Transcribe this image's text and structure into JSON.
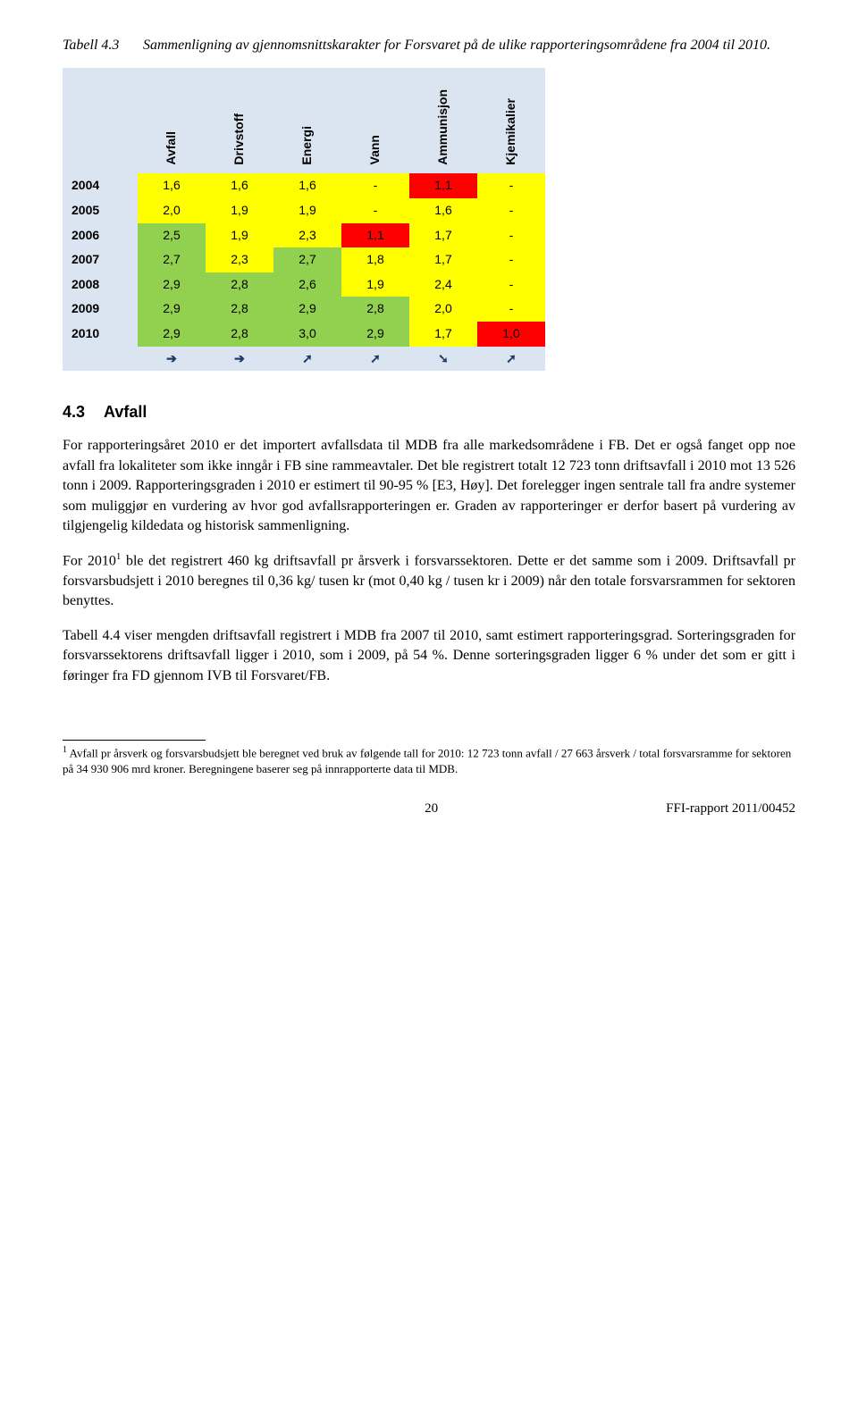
{
  "caption": {
    "label": "Tabell 4.3",
    "text": "Sammenligning av gjennomsnittskarakter for Forsvaret på de ulike rapporteringsområdene fra 2004 til 2010."
  },
  "table": {
    "columns": [
      "Avfall",
      "Drivstoff",
      "Energi",
      "Vann",
      "Ammunisjon",
      "Kjemikalier"
    ],
    "rows": [
      {
        "year": "2004",
        "cells": [
          "1,6",
          "1,6",
          "1,6",
          "-",
          "1,1",
          "-"
        ],
        "colors": [
          "#ffff00",
          "#ffff00",
          "#ffff00",
          "#ffff00",
          "#ff0000",
          "#ffff00"
        ]
      },
      {
        "year": "2005",
        "cells": [
          "2,0",
          "1,9",
          "1,9",
          "-",
          "1,6",
          "-"
        ],
        "colors": [
          "#ffff00",
          "#ffff00",
          "#ffff00",
          "#ffff00",
          "#ffff00",
          "#ffff00"
        ]
      },
      {
        "year": "2006",
        "cells": [
          "2,5",
          "1,9",
          "2,3",
          "1,1",
          "1,7",
          "-"
        ],
        "colors": [
          "#92d050",
          "#ffff00",
          "#ffff00",
          "#ff0000",
          "#ffff00",
          "#ffff00"
        ]
      },
      {
        "year": "2007",
        "cells": [
          "2,7",
          "2,3",
          "2,7",
          "1,8",
          "1,7",
          "-"
        ],
        "colors": [
          "#92d050",
          "#ffff00",
          "#92d050",
          "#ffff00",
          "#ffff00",
          "#ffff00"
        ]
      },
      {
        "year": "2008",
        "cells": [
          "2,9",
          "2,8",
          "2,6",
          "1,9",
          "2,4",
          "-"
        ],
        "colors": [
          "#92d050",
          "#92d050",
          "#92d050",
          "#ffff00",
          "#ffff00",
          "#ffff00"
        ]
      },
      {
        "year": "2009",
        "cells": [
          "2,9",
          "2,8",
          "2,9",
          "2,8",
          "2,0",
          "-"
        ],
        "colors": [
          "#92d050",
          "#92d050",
          "#92d050",
          "#92d050",
          "#ffff00",
          "#ffff00"
        ]
      },
      {
        "year": "2010",
        "cells": [
          "2,9",
          "2,8",
          "3,0",
          "2,9",
          "1,7",
          "1,0"
        ],
        "colors": [
          "#92d050",
          "#92d050",
          "#92d050",
          "#92d050",
          "#ffff00",
          "#ff0000"
        ]
      }
    ],
    "arrows": [
      "➔",
      "➔",
      "➚",
      "➚",
      "➘",
      "➚"
    ],
    "arrow_colors": [
      "#1f3864",
      "#1f3864",
      "#1f3864",
      "#1f3864",
      "#1f3864",
      "#1f3864"
    ],
    "header_bg": "#dbe5f1"
  },
  "section": {
    "num": "4.3",
    "title": "Avfall"
  },
  "paragraphs": {
    "p1": "For rapporteringsåret 2010 er det importert avfallsdata til MDB fra alle markedsområdene i FB. Det er også fanget opp noe avfall fra lokaliteter som ikke inngår i FB sine rammeavtaler. Det ble registrert totalt 12 723 tonn driftsavfall i 2010 mot 13 526 tonn i 2009. Rapporteringsgraden i 2010 er estimert til 90-95 % [E3, Høy]. Det forelegger ingen sentrale tall fra andre systemer som muliggjør en vurdering av hvor god avfallsrapporteringen er. Graden av rapporteringer er derfor basert på vurdering av tilgjengelig kildedata og historisk sammenligning.",
    "p2a": "For 2010",
    "p2b": " ble det registrert 460 kg driftsavfall pr årsverk i forsvarssektoren. Dette er det samme som i 2009. Driftsavfall pr forsvarsbudsjett i 2010 beregnes til 0,36 kg/ tusen kr (mot 0,40 kg / tusen kr i 2009) når den totale forsvarsrammen for sektoren benyttes.",
    "p3": "Tabell 4.4 viser mengden driftsavfall registrert i MDB fra 2007 til 2010, samt estimert rapporteringsgrad. Sorteringsgraden for forsvarssektorens driftsavfall ligger i 2010, som i 2009, på 54 %. Denne sorteringsgraden ligger 6 % under det som er gitt i føringer fra FD gjennom IVB til Forsvaret/FB."
  },
  "footnote": {
    "marker": "1",
    "text": "Avfall pr årsverk og forsvarsbudsjett ble beregnet ved bruk av følgende tall for 2010: 12 723 tonn avfall / 27 663 årsverk / total forsvarsramme for sektoren på 34 930 906 mrd kroner. Beregningene baserer seg på innrapporterte data til MDB."
  },
  "footer": {
    "page": "20",
    "report": "FFI-rapport 2011/00452"
  }
}
